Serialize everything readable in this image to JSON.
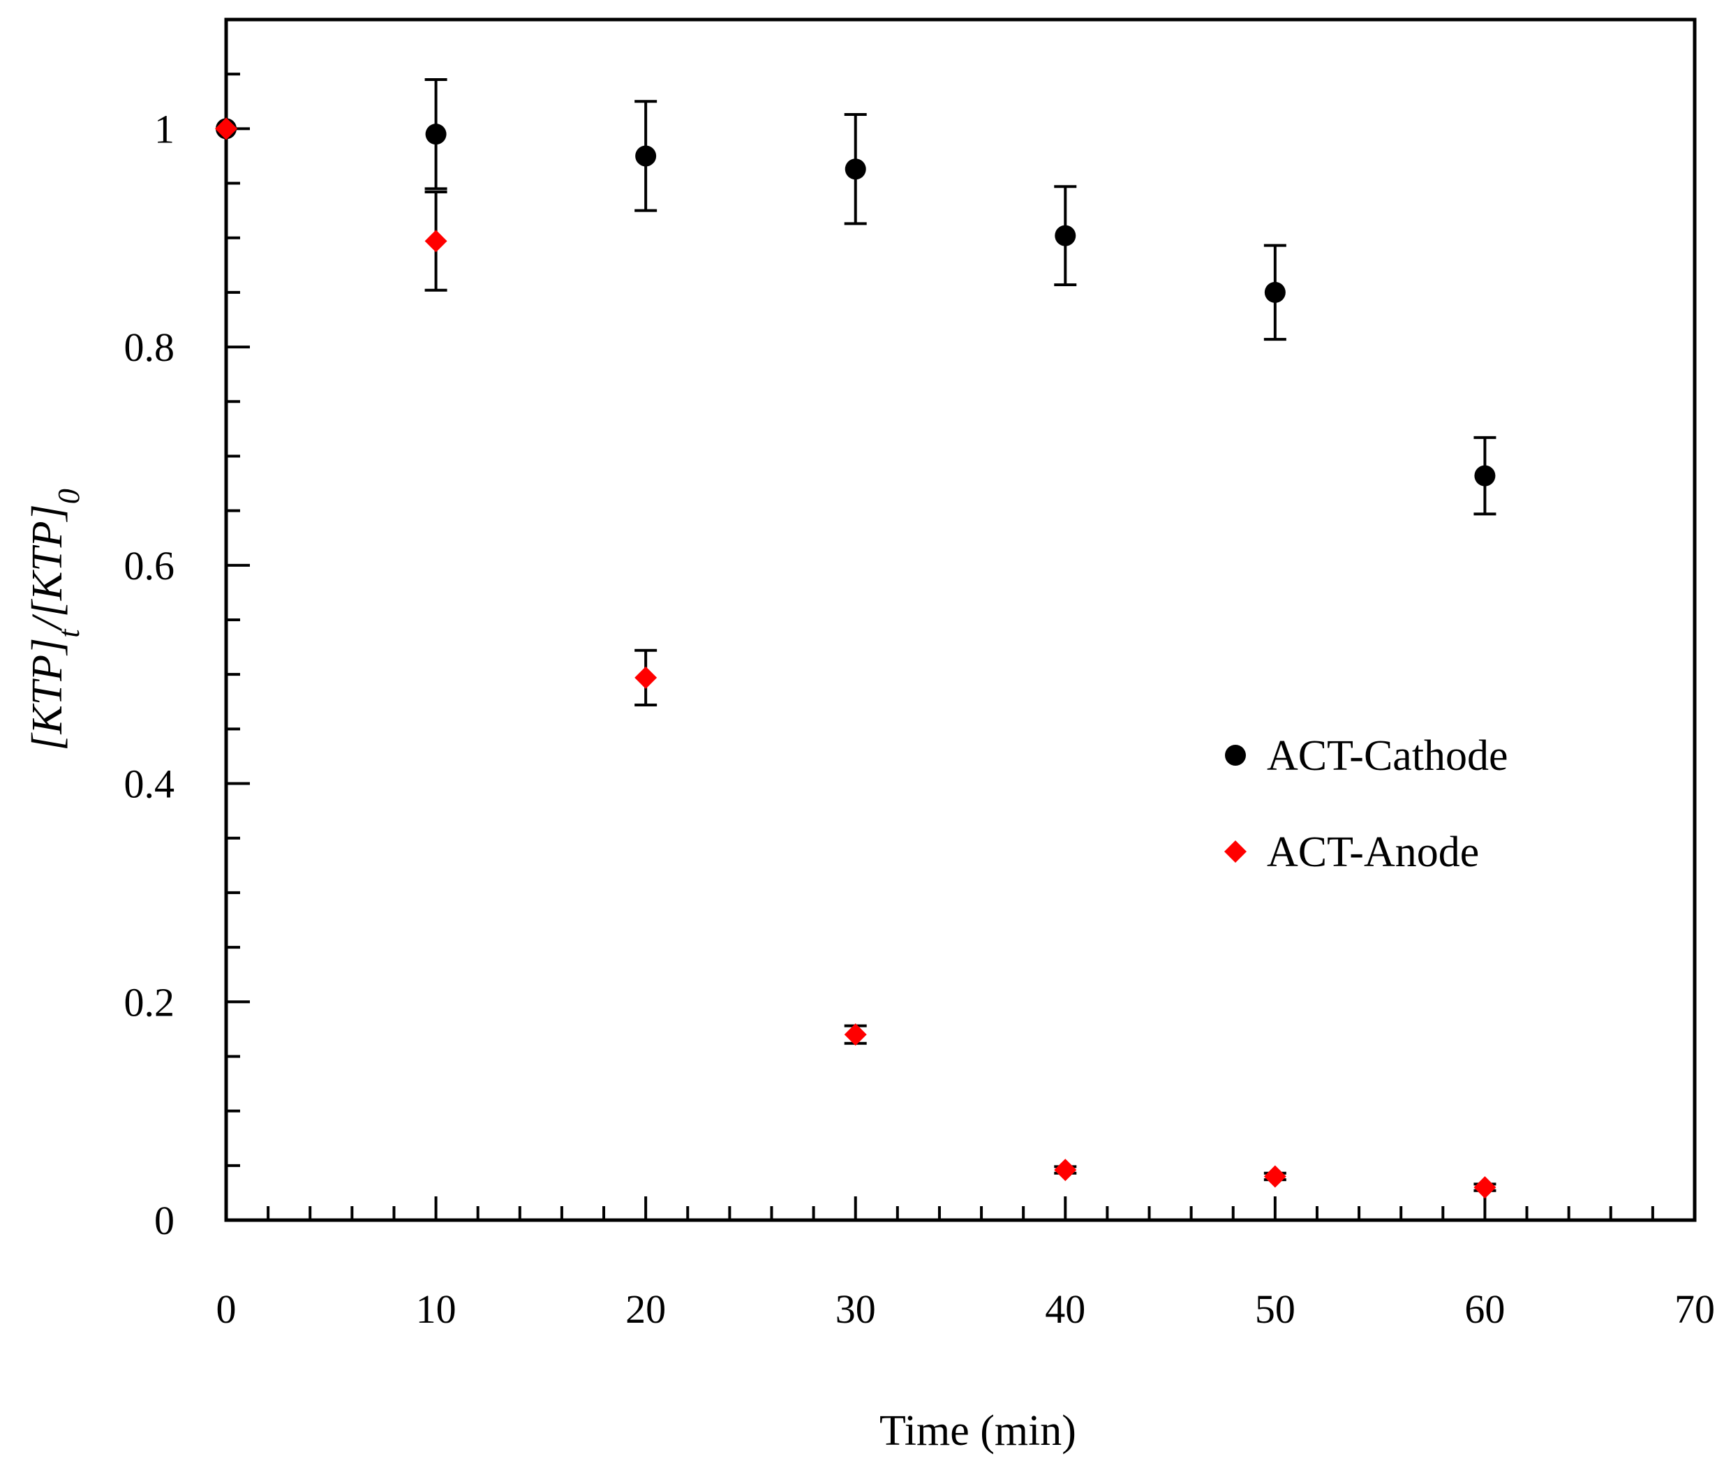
{
  "chart_data": {
    "type": "scatter",
    "xlabel": "Time (min)",
    "ylabel": {
      "main1": "[KTP]",
      "sub1": "t",
      "main2": "/[KTP]",
      "sub2": "0"
    },
    "xlim": [
      0,
      70
    ],
    "ylim": [
      0,
      1.1
    ],
    "x_ticks": [
      0,
      10,
      20,
      30,
      40,
      50,
      60,
      70
    ],
    "x_tick_labels": [
      "0",
      "10",
      "20",
      "30",
      "40",
      "50",
      "60",
      "70"
    ],
    "y_ticks": [
      0,
      0.2,
      0.4,
      0.6,
      0.8,
      1
    ],
    "y_tick_labels": [
      "0",
      "0.2",
      "0.4",
      "0.6",
      "0.8",
      "1"
    ],
    "grid": false,
    "legend_position": "right-center",
    "series": [
      {
        "name": "ACT-Cathode",
        "marker": "circle",
        "color": "#000000",
        "x": [
          0,
          10,
          20,
          30,
          40,
          50,
          60
        ],
        "y": [
          1.0,
          0.995,
          0.975,
          0.963,
          0.902,
          0.85,
          0.682
        ],
        "err": [
          0,
          0.05,
          0.05,
          0.05,
          0.045,
          0.043,
          0.035
        ]
      },
      {
        "name": "ACT-Anode",
        "marker": "diamond",
        "color": "#ff0000",
        "x": [
          0,
          10,
          20,
          30,
          40,
          50,
          60
        ],
        "y": [
          1.0,
          0.897,
          0.497,
          0.17,
          0.046,
          0.04,
          0.03
        ],
        "err": [
          0,
          0.045,
          0.025,
          0.008,
          0.003,
          0.003,
          0.003
        ]
      }
    ]
  }
}
